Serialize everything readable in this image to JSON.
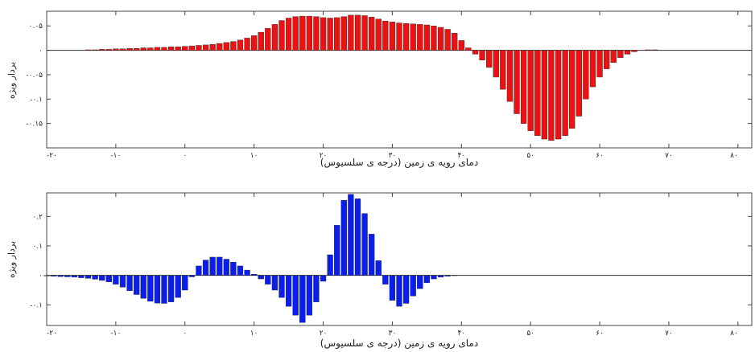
{
  "chart_data": [
    {
      "type": "bar",
      "title": "",
      "xlabel": "دمای رویه ی زمین (درجه ی سلسیوس)",
      "ylabel": "بردار ویژه",
      "xlim": [
        -20,
        82
      ],
      "ylim": [
        -0.2,
        0.08
      ],
      "xticks": [
        -20,
        -10,
        0,
        10,
        20,
        30,
        40,
        50,
        60,
        70,
        80
      ],
      "xtick_labels": [
        "-۲۰",
        "-۱۰",
        "۰",
        "۱۰",
        "۲۰",
        "۳۰",
        "۴۰",
        "۵۰",
        "۶۰",
        "۷۰",
        "۸۰"
      ],
      "yticks": [
        0.05,
        0,
        -0.05,
        -0.1,
        -0.15
      ],
      "ytick_labels": [
        "۰.۰۵",
        "۰",
        "-۰.۰۵",
        "-۰.۱",
        "-۰.۱۵"
      ],
      "bar_color": "#ee1111",
      "bar_width": 0.8,
      "x": [
        -20,
        -19,
        -18,
        -17,
        -16,
        -15,
        -14,
        -13,
        -12,
        -11,
        -10,
        -9,
        -8,
        -7,
        -6,
        -5,
        -4,
        -3,
        -2,
        -1,
        0,
        1,
        2,
        3,
        4,
        5,
        6,
        7,
        8,
        9,
        10,
        11,
        12,
        13,
        14,
        15,
        16,
        17,
        18,
        19,
        20,
        21,
        22,
        23,
        24,
        25,
        26,
        27,
        28,
        29,
        30,
        31,
        32,
        33,
        34,
        35,
        36,
        37,
        38,
        39,
        40,
        41,
        42,
        43,
        44,
        45,
        46,
        47,
        48,
        49,
        50,
        51,
        52,
        53,
        54,
        55,
        56,
        57,
        58,
        59,
        60,
        61,
        62,
        63,
        64,
        65,
        66,
        67,
        68,
        69,
        70,
        71,
        72,
        73,
        74,
        75,
        76,
        77,
        78,
        79,
        80,
        81
      ],
      "values": [
        0,
        0,
        0,
        0,
        0,
        0,
        0.001,
        0.001,
        0.002,
        0.002,
        0.003,
        0.003,
        0.004,
        0.004,
        0.005,
        0.005,
        0.006,
        0.006,
        0.007,
        0.007,
        0.008,
        0.009,
        0.01,
        0.011,
        0.012,
        0.014,
        0.016,
        0.018,
        0.021,
        0.025,
        0.03,
        0.037,
        0.045,
        0.053,
        0.061,
        0.066,
        0.069,
        0.07,
        0.07,
        0.069,
        0.067,
        0.066,
        0.067,
        0.069,
        0.072,
        0.072,
        0.071,
        0.068,
        0.064,
        0.06,
        0.058,
        0.056,
        0.055,
        0.054,
        0.053,
        0.052,
        0.05,
        0.047,
        0.043,
        0.035,
        0.02,
        0.005,
        -0.008,
        -0.02,
        -0.035,
        -0.055,
        -0.08,
        -0.105,
        -0.13,
        -0.15,
        -0.165,
        -0.175,
        -0.182,
        -0.185,
        -0.182,
        -0.175,
        -0.16,
        -0.135,
        -0.1,
        -0.075,
        -0.055,
        -0.038,
        -0.025,
        -0.015,
        -0.008,
        -0.003,
        0,
        0.001,
        0.001,
        0,
        0,
        0,
        0,
        0,
        0,
        0,
        0,
        0,
        0,
        0,
        0,
        0
      ]
    },
    {
      "type": "bar",
      "title": "",
      "xlabel": "دمای رویه ی زمین (درجه ی سلسیوس)",
      "ylabel": "بردار ویژه",
      "xlim": [
        -20,
        82
      ],
      "ylim": [
        -0.17,
        0.28
      ],
      "xticks": [
        -20,
        -10,
        0,
        10,
        20,
        30,
        40,
        50,
        60,
        70,
        80
      ],
      "xtick_labels": [
        "-۲۰",
        "-۱۰",
        "۰",
        "۱۰",
        "۲۰",
        "۳۰",
        "۴۰",
        "۵۰",
        "۶۰",
        "۷۰",
        "۸۰"
      ],
      "yticks": [
        0.2,
        0.1,
        0,
        -0.1
      ],
      "ytick_labels": [
        "۰.۲",
        "۰.۱",
        "۰",
        "-۰.۱"
      ],
      "bar_color": "#0a1eee",
      "bar_width": 0.8,
      "x": [
        -20,
        -19,
        -18,
        -17,
        -16,
        -15,
        -14,
        -13,
        -12,
        -11,
        -10,
        -9,
        -8,
        -7,
        -6,
        -5,
        -4,
        -3,
        -2,
        -1,
        0,
        1,
        2,
        3,
        4,
        5,
        6,
        7,
        8,
        9,
        10,
        11,
        12,
        13,
        14,
        15,
        16,
        17,
        18,
        19,
        20,
        21,
        22,
        23,
        24,
        25,
        26,
        27,
        28,
        29,
        30,
        31,
        32,
        33,
        34,
        35,
        36,
        37,
        38,
        39,
        40,
        41,
        42,
        43,
        44,
        45,
        46,
        47,
        48,
        49,
        50,
        51,
        52,
        53,
        54,
        55,
        56,
        57,
        58,
        59,
        60,
        61,
        62,
        63,
        64,
        65,
        66,
        67,
        68,
        69,
        70,
        71,
        72,
        73,
        74,
        75,
        76,
        77,
        78,
        79,
        80,
        81
      ],
      "values": [
        -0.002,
        -0.003,
        -0.004,
        -0.005,
        -0.006,
        -0.008,
        -0.01,
        -0.013,
        -0.017,
        -0.022,
        -0.03,
        -0.04,
        -0.052,
        -0.065,
        -0.078,
        -0.088,
        -0.094,
        -0.095,
        -0.09,
        -0.075,
        -0.05,
        -0.005,
        0.032,
        0.052,
        0.062,
        0.062,
        0.055,
        0.045,
        0.032,
        0.018,
        0.004,
        -0.012,
        -0.03,
        -0.05,
        -0.075,
        -0.105,
        -0.135,
        -0.16,
        -0.135,
        -0.09,
        -0.02,
        0.07,
        0.17,
        0.255,
        0.275,
        0.26,
        0.21,
        0.14,
        0.05,
        -0.03,
        -0.085,
        -0.105,
        -0.095,
        -0.07,
        -0.045,
        -0.025,
        -0.012,
        -0.006,
        -0.003,
        -0.001,
        0,
        0,
        0,
        0,
        0,
        0,
        0,
        0,
        0,
        0,
        0,
        0,
        0,
        0,
        0,
        0,
        0,
        0,
        0,
        0,
        0,
        0,
        0,
        0,
        0,
        0,
        0,
        0,
        0,
        0,
        0,
        0,
        0,
        0,
        0,
        0,
        0,
        0,
        0,
        0,
        0,
        0
      ]
    }
  ]
}
